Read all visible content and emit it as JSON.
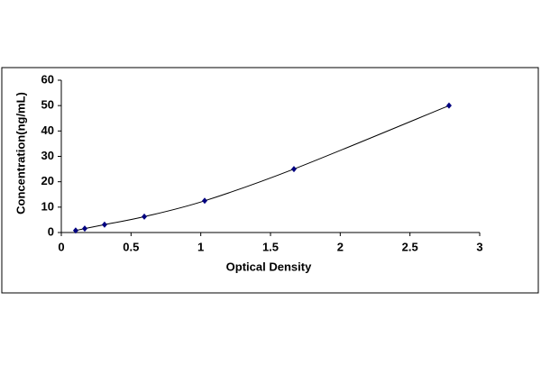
{
  "chart_data": {
    "type": "line",
    "x_label": "Optical Density",
    "y_label": "Concentration(ng/mL)",
    "x": [
      0.103,
      0.168,
      0.31,
      0.595,
      1.028,
      1.668,
      2.78
    ],
    "series": [
      {
        "color": "#000080",
        "values": [
          0.78,
          1.56,
          3.12,
          6.25,
          12.5,
          25,
          50
        ]
      }
    ],
    "xlim": [
      0,
      3
    ],
    "xticks": [
      0,
      0.5,
      1,
      1.5,
      2,
      2.5,
      3
    ],
    "ylim": [
      0,
      60
    ],
    "yticks": [
      0,
      10,
      20,
      30,
      40,
      50,
      60
    ],
    "grid": false
  }
}
